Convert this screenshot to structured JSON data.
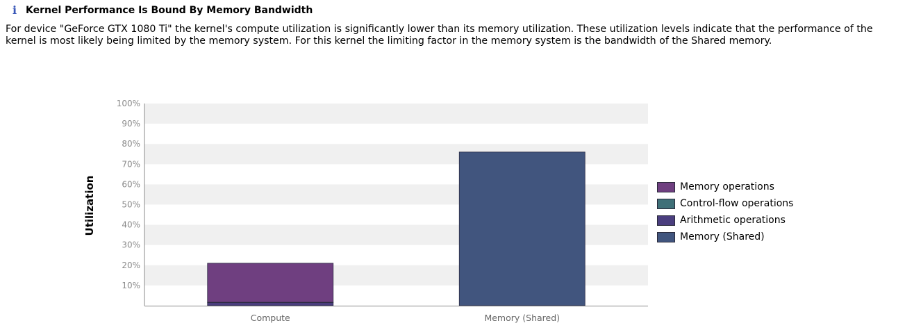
{
  "header": {
    "icon": "info-icon",
    "title": "Kernel Performance Is Bound By Memory Bandwidth",
    "description": "For device \"GeForce GTX 1080 Ti\" the kernel's compute utilization is significantly lower than its memory utilization. These utilization levels indicate that the performance of the kernel is most likely being limited by the memory system. For this kernel the limiting factor in the memory system is the bandwidth of the Shared memory."
  },
  "colors": {
    "memory_operations": "#6f3f80",
    "control_flow_operations": "#3f7078",
    "arithmetic_operations": "#4a3e7e",
    "memory_shared": "#41557e",
    "band": "#f0f0f0",
    "axis": "#888888"
  },
  "chart_data": {
    "type": "bar",
    "stacked": true,
    "ylabel": "Utilization",
    "xlabel": "",
    "ylim": [
      0,
      100
    ],
    "yticks": [
      "10%",
      "20%",
      "30%",
      "40%",
      "50%",
      "60%",
      "70%",
      "80%",
      "90%",
      "100%"
    ],
    "categories": [
      "Compute",
      "Memory (Shared)"
    ],
    "series": [
      {
        "name": "Arithmetic operations",
        "color": "#4a3e7e",
        "values": [
          1.5,
          0
        ]
      },
      {
        "name": "Control-flow operations",
        "color": "#3f7078",
        "values": [
          0.2,
          0
        ]
      },
      {
        "name": "Memory operations",
        "color": "#6f3f80",
        "values": [
          19.3,
          0
        ]
      },
      {
        "name": "Memory (Shared)",
        "color": "#41557e",
        "values": [
          0,
          76
        ]
      }
    ],
    "legend": {
      "placement": "right",
      "items": [
        {
          "label": "Memory operations",
          "color": "#6f3f80"
        },
        {
          "label": "Control-flow operations",
          "color": "#3f7078"
        },
        {
          "label": "Arithmetic operations",
          "color": "#4a3e7e"
        },
        {
          "label": "Memory (Shared)",
          "color": "#41557e"
        }
      ]
    },
    "grid": "alternating-bands"
  }
}
